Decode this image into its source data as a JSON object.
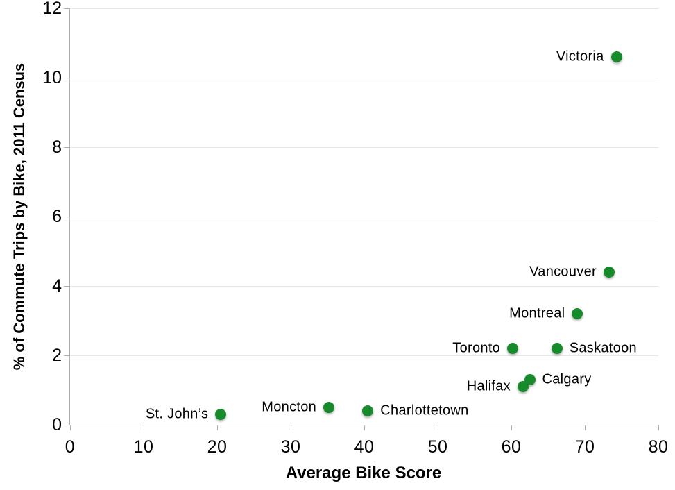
{
  "chart_data": {
    "type": "scatter",
    "title": "",
    "xlabel": "Average Bike Score",
    "ylabel": "% of Commute Trips by Bike, 2011 Census",
    "xlim": [
      0,
      80
    ],
    "ylim": [
      0,
      12
    ],
    "x_ticks": [
      0,
      10,
      20,
      30,
      40,
      50,
      60,
      70,
      80
    ],
    "y_ticks": [
      0,
      2,
      4,
      6,
      8,
      10,
      12
    ],
    "grid": "horizontal",
    "legend": "none",
    "marker_color": "#178b2b",
    "grid_color": "#e8e8e8",
    "axis_color": "#b0b0b0",
    "text_color": "#000000",
    "points": [
      {
        "city": "Victoria",
        "x": 74.3,
        "y": 10.6,
        "label_side": "left"
      },
      {
        "city": "Vancouver",
        "x": 73.3,
        "y": 4.4,
        "label_side": "left"
      },
      {
        "city": "Montreal",
        "x": 69.0,
        "y": 3.2,
        "label_side": "left"
      },
      {
        "city": "Saskatoon",
        "x": 66.2,
        "y": 2.2,
        "label_side": "right"
      },
      {
        "city": "Toronto",
        "x": 60.2,
        "y": 2.2,
        "label_side": "left"
      },
      {
        "city": "Calgary",
        "x": 62.5,
        "y": 1.3,
        "label_side": "right"
      },
      {
        "city": "Halifax",
        "x": 61.6,
        "y": 1.1,
        "label_side": "left"
      },
      {
        "city": "Charlottetown",
        "x": 40.5,
        "y": 0.4,
        "label_side": "right"
      },
      {
        "city": "Moncton",
        "x": 35.2,
        "y": 0.5,
        "label_side": "left"
      },
      {
        "city": "St. John’s",
        "x": 20.5,
        "y": 0.3,
        "label_side": "left"
      }
    ]
  }
}
